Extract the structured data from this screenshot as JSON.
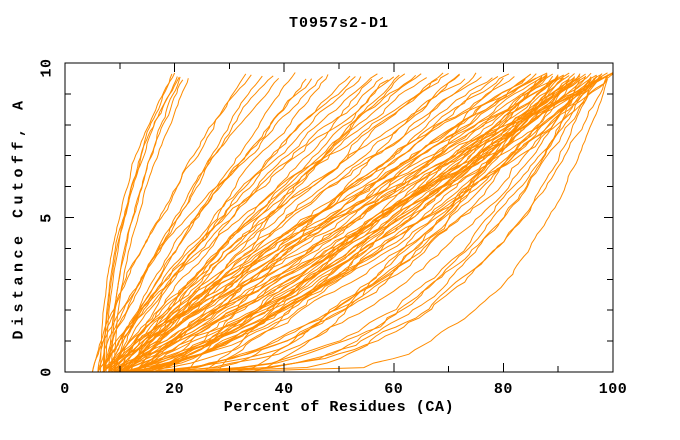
{
  "title": "T0957s2-D1",
  "colors": {
    "curve": "#FF8C00",
    "axis": "#000000",
    "background": "#FFFFFF",
    "text": "#000000"
  },
  "chart_data": {
    "type": "line",
    "title": "T0957s2-D1",
    "xlabel": "Percent of Residues (CA)",
    "ylabel": "Distance Cutoff, A",
    "xlim": [
      0,
      100
    ],
    "ylim": [
      0,
      10
    ],
    "x_tick_labels": [
      "0",
      "20",
      "40",
      "60",
      "80",
      "100"
    ],
    "y_tick_labels": [
      "0",
      "5",
      "10"
    ],
    "x_major_ticks": [
      0,
      20,
      40,
      60,
      80,
      100
    ],
    "x_minor_ticks": [
      10,
      30,
      50,
      70,
      90
    ],
    "y_major_ticks": [
      0,
      5,
      10
    ],
    "y_minor_ticks": [
      1,
      2,
      3,
      4,
      6,
      7,
      8,
      9
    ],
    "grid": false,
    "legend": null,
    "n_curves": 101,
    "series_color": "#FF8C00",
    "curve_top_y_range": [
      9.45,
      9.7
    ],
    "curve_model": "each curve: x(y) = start + (top-start)*(y/ymax)^shape, percent vs cutoff, monotone with organic jitter",
    "curves": [
      [
        6.5,
        19.5,
        2.0
      ],
      [
        7,
        20,
        1.85
      ],
      [
        7.5,
        20.5,
        2.1
      ],
      [
        8,
        21,
        1.75
      ],
      [
        8.5,
        21.5,
        1.95
      ],
      [
        9,
        22.5,
        1.8
      ],
      [
        7.2,
        20.8,
        2.25
      ],
      [
        22,
        72,
        1.05
      ],
      [
        25,
        80,
        0.92
      ],
      [
        28,
        88,
        0.85
      ],
      [
        31,
        93,
        0.8
      ],
      [
        34,
        90,
        0.75
      ],
      [
        14,
        90,
        0.5
      ],
      [
        16,
        92,
        0.45
      ],
      [
        18,
        94,
        0.4
      ],
      [
        20,
        96,
        0.36
      ],
      [
        22,
        97,
        0.32
      ],
      [
        24,
        98,
        0.42
      ],
      [
        19,
        95,
        0.48
      ],
      [
        17,
        93,
        0.55
      ],
      [
        21,
        99,
        0.38
      ],
      [
        15,
        91,
        0.52
      ],
      [
        22,
        96,
        0.46
      ],
      [
        28,
        99,
        0.3
      ],
      [
        9,
        86,
        0.85
      ],
      [
        10,
        88,
        0.8
      ],
      [
        11,
        90,
        0.75
      ],
      [
        12,
        92,
        0.7
      ],
      [
        13,
        94,
        0.65
      ],
      [
        14,
        96,
        0.62
      ],
      [
        10,
        98,
        0.68
      ],
      [
        11,
        99,
        0.72
      ],
      [
        12,
        100,
        0.78
      ],
      [
        13,
        97,
        0.82
      ],
      [
        9,
        95,
        0.88
      ],
      [
        10,
        93,
        0.9
      ],
      [
        11,
        89,
        0.74
      ],
      [
        12,
        87,
        0.66
      ],
      [
        7,
        72,
        1.0
      ],
      [
        8,
        75,
        1.1
      ],
      [
        9,
        78,
        1.05
      ],
      [
        10,
        81,
        0.98
      ],
      [
        11,
        84,
        1.15
      ],
      [
        12,
        86,
        1.2
      ],
      [
        7,
        88,
        1.08
      ],
      [
        8,
        90,
        1.12
      ],
      [
        9,
        92,
        1.0
      ],
      [
        10,
        94,
        1.18
      ],
      [
        11,
        96,
        1.05
      ],
      [
        12,
        98,
        0.96
      ],
      [
        13,
        100,
        1.1
      ],
      [
        8,
        73,
        1.22
      ],
      [
        9,
        76,
        1.15
      ],
      [
        10,
        79,
        1.02
      ],
      [
        11,
        82,
        1.25
      ],
      [
        12,
        85,
        0.97
      ],
      [
        13,
        88,
        1.07
      ],
      [
        14,
        91,
        1.13
      ],
      [
        6,
        52,
        1.1
      ],
      [
        7,
        54,
        1.2
      ],
      [
        8,
        56,
        1.05
      ],
      [
        9,
        58,
        1.3
      ],
      [
        10,
        60,
        1.15
      ],
      [
        11,
        62,
        1.0
      ],
      [
        12,
        64,
        1.25
      ],
      [
        6,
        66,
        1.12
      ],
      [
        7,
        68,
        1.18
      ],
      [
        8,
        70,
        1.08
      ],
      [
        9,
        53,
        1.35
      ],
      [
        10,
        57,
        1.22
      ],
      [
        11,
        61,
        1.02
      ],
      [
        12,
        65,
        1.28
      ],
      [
        13,
        69,
        1.06
      ],
      [
        7,
        59,
        1.4
      ],
      [
        5,
        33,
        1.25
      ],
      [
        6,
        36,
        1.15
      ],
      [
        7,
        39,
        1.3
      ],
      [
        8,
        42,
        1.1
      ],
      [
        9,
        45,
        1.35
      ],
      [
        10,
        48,
        1.2
      ],
      [
        6,
        34,
        1.45
      ],
      [
        7,
        38,
        1.28
      ],
      [
        8,
        44,
        1.18
      ],
      [
        5,
        47,
        1.32
      ],
      [
        9.5,
        87,
        0.93
      ],
      [
        10.5,
        89,
        0.87
      ],
      [
        11.5,
        91,
        0.81
      ],
      [
        12.5,
        93,
        0.77
      ],
      [
        13.5,
        95,
        0.83
      ],
      [
        14.5,
        97,
        0.9
      ],
      [
        8.5,
        99,
        0.95
      ],
      [
        9.8,
        85,
        1.0
      ],
      [
        10.8,
        88,
        0.73
      ],
      [
        11.8,
        92,
        0.69
      ],
      [
        12.8,
        96,
        0.64
      ],
      [
        13.8,
        98,
        0.71
      ],
      [
        15,
        100,
        0.79
      ],
      [
        16,
        94,
        0.86
      ],
      [
        6.8,
        90,
        1.03
      ],
      [
        7.8,
        94,
        0.99
      ],
      [
        8.8,
        98,
        0.91
      ]
    ]
  }
}
